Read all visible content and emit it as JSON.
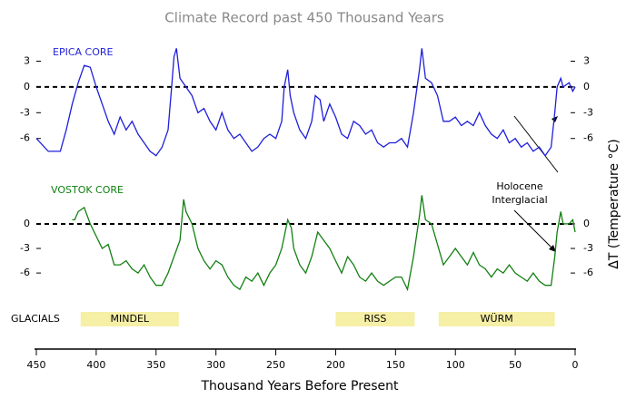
{
  "chart_data": [
    {
      "type": "line",
      "title": "Climate Record past 450 Thousand Years",
      "y_label": "ΔT  (Temperature °C)",
      "xlim": [
        450,
        0
      ],
      "ylim": [
        -9.3,
        5.9
      ],
      "yticks": [
        3,
        0,
        -3,
        -6
      ],
      "reference_line": 0,
      "series": [
        {
          "name": "EPICA CORE",
          "color": "#1f1fdb",
          "x": [
            450,
            440,
            430,
            425,
            420,
            415,
            410,
            405,
            400,
            395,
            390,
            385,
            380,
            375,
            370,
            365,
            360,
            355,
            350,
            345,
            340,
            337,
            335,
            333,
            330,
            325,
            320,
            315,
            310,
            305,
            300,
            295,
            290,
            285,
            280,
            275,
            270,
            265,
            260,
            255,
            250,
            245,
            243,
            240,
            238,
            235,
            230,
            225,
            220,
            217,
            213,
            210,
            205,
            200,
            195,
            190,
            185,
            180,
            175,
            170,
            165,
            160,
            155,
            150,
            145,
            140,
            135,
            130,
            128,
            125,
            120,
            115,
            110,
            105,
            100,
            95,
            90,
            85,
            80,
            75,
            70,
            65,
            60,
            55,
            50,
            45,
            40,
            35,
            30,
            25,
            20,
            17,
            15,
            12,
            10,
            5,
            2,
            0
          ],
          "values": [
            -6,
            -7.5,
            -7.5,
            -5,
            -2,
            0.5,
            2.5,
            2.3,
            0,
            -2,
            -4,
            -5.5,
            -3.5,
            -5,
            -4,
            -5.5,
            -6.5,
            -7.5,
            -8,
            -7,
            -5,
            0,
            3.5,
            4.5,
            1,
            0,
            -1,
            -3,
            -2.5,
            -4,
            -5,
            -3,
            -5,
            -6,
            -5.5,
            -6.5,
            -7.5,
            -7,
            -6,
            -5.5,
            -6,
            -4,
            0,
            2,
            -1,
            -3,
            -5,
            -6,
            -4,
            -1,
            -1.5,
            -4,
            -2,
            -3.5,
            -5.5,
            -6,
            -4,
            -4.5,
            -5.5,
            -5,
            -6.5,
            -7,
            -6.5,
            -6.5,
            -6,
            -7,
            -3,
            2,
            4.5,
            1,
            0.5,
            -1,
            -4,
            -4,
            -3.5,
            -4.5,
            -4,
            -4.5,
            -3,
            -4.5,
            -5.5,
            -6,
            -5,
            -6.5,
            -6,
            -7,
            -6.5,
            -7.5,
            -7,
            -8,
            -7,
            -3,
            0,
            1,
            0,
            0.5,
            -0.5,
            0
          ]
        }
      ]
    },
    {
      "type": "line",
      "x_label": "Thousand Years Before Present",
      "xlim": [
        450,
        0
      ],
      "xticks": [
        450,
        400,
        350,
        300,
        250,
        200,
        150,
        100,
        50,
        0
      ],
      "ylim": [
        -9.2,
        5.2
      ],
      "yticks": [
        0,
        -3,
        -6
      ],
      "reference_line": 0,
      "annotation": [
        "Holocene",
        "Interglacial"
      ],
      "bands_label": "GLACIALS",
      "bands": [
        {
          "label": "MINDEL",
          "start": 413,
          "end": 331
        },
        {
          "label": "RISS",
          "start": 200,
          "end": 134
        },
        {
          "label": "WÜRM",
          "start": 114,
          "end": 17
        }
      ],
      "series": [
        {
          "name": "VOSTOK CORE",
          "color": "#128012",
          "x": [
            420,
            418,
            415,
            410,
            405,
            400,
            395,
            390,
            385,
            380,
            375,
            370,
            365,
            360,
            355,
            350,
            345,
            340,
            335,
            330,
            327,
            325,
            320,
            315,
            310,
            305,
            300,
            295,
            290,
            285,
            280,
            275,
            270,
            265,
            260,
            255,
            250,
            245,
            240,
            237,
            235,
            230,
            225,
            220,
            215,
            210,
            205,
            200,
            195,
            190,
            185,
            180,
            175,
            170,
            165,
            160,
            155,
            150,
            145,
            140,
            135,
            130,
            128,
            125,
            120,
            115,
            110,
            105,
            100,
            95,
            90,
            85,
            80,
            75,
            70,
            65,
            60,
            55,
            50,
            45,
            40,
            35,
            30,
            25,
            20,
            17,
            15,
            12,
            10,
            5,
            2,
            0
          ],
          "values": [
            0.5,
            0.5,
            1.5,
            2,
            0,
            -1.5,
            -3,
            -2.5,
            -5,
            -5,
            -4.5,
            -5.5,
            -6,
            -5,
            -6.5,
            -7.5,
            -7.5,
            -6,
            -4,
            -2,
            3,
            1.5,
            0,
            -3,
            -4.5,
            -5.5,
            -4.5,
            -5,
            -6.5,
            -7.5,
            -8,
            -6.5,
            -7,
            -6,
            -7.5,
            -6,
            -5,
            -3,
            0.5,
            -0.5,
            -3,
            -5,
            -6,
            -4,
            -1,
            -2,
            -3,
            -4.5,
            -6,
            -4,
            -5,
            -6.5,
            -7,
            -6,
            -7,
            -7.5,
            -7,
            -6.5,
            -6.5,
            -8,
            -4,
            1,
            3.5,
            0.5,
            0,
            -2.5,
            -5,
            -4,
            -3,
            -4,
            -5,
            -3.5,
            -5,
            -5.5,
            -6.5,
            -5.5,
            -6,
            -5,
            -6,
            -6.5,
            -7,
            -6,
            -7,
            -7.5,
            -7.5,
            -4,
            -1,
            1.5,
            0,
            0,
            0.5,
            -1
          ]
        }
      ]
    }
  ]
}
